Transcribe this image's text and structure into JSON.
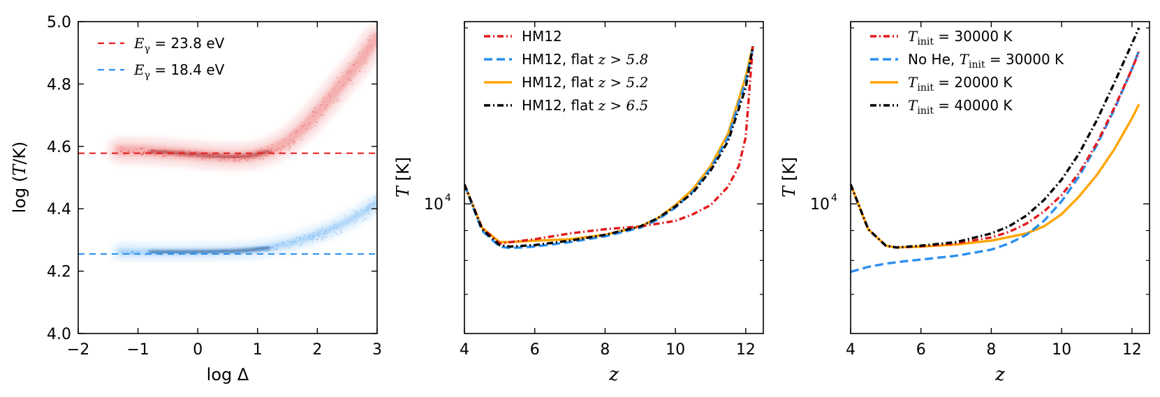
{
  "chart_data": [
    {
      "type": "scatter",
      "panel": "left",
      "xlabel": "log Δ",
      "ylabel_prefix": "log (",
      "ylabel_var": "T",
      "ylabel_suffix": "/K)",
      "xlim": [
        -2,
        3
      ],
      "ylim": [
        4.0,
        5.0
      ],
      "xticks": [
        -2,
        -1,
        0,
        1,
        2,
        3
      ],
      "xtick_labels": [
        "−2",
        "−1",
        "0",
        "1",
        "2",
        "3"
      ],
      "yticks": [
        4.0,
        4.2,
        4.4,
        4.6,
        4.8,
        5.0
      ],
      "ytick_labels": [
        "4.0",
        "4.2",
        "4.4",
        "4.6",
        "4.8",
        "5.0"
      ],
      "legend": [
        {
          "label_var": "E",
          "label_sub": "γ",
          "label_rest": " = 23.8 eV",
          "color": "#e41a1c"
        },
        {
          "label_var": "E",
          "label_sub": "γ",
          "label_rest": " = 18.4 eV",
          "color": "#2b8ff0"
        }
      ],
      "hlines": [
        {
          "y": 4.578,
          "color": "#e41a1c"
        },
        {
          "y": 4.255,
          "color": "#2b8ff0"
        }
      ],
      "series": [
        {
          "name": "E_gamma=23.8 eV",
          "color": "#e41a1c",
          "ridge": [
            [
              -1.3,
              4.588
            ],
            [
              -0.8,
              4.585
            ],
            [
              -0.3,
              4.578
            ],
            [
              0.2,
              4.57
            ],
            [
              0.6,
              4.566
            ],
            [
              0.9,
              4.57
            ],
            [
              1.2,
              4.585
            ],
            [
              1.5,
              4.615
            ],
            [
              1.8,
              4.665
            ],
            [
              2.1,
              4.73
            ],
            [
              2.4,
              4.8
            ],
            [
              2.7,
              4.87
            ],
            [
              3.0,
              4.95
            ]
          ]
        },
        {
          "name": "E_gamma=18.4 eV",
          "color": "#2b8ff0",
          "ridge": [
            [
              -1.3,
              4.262
            ],
            [
              -0.8,
              4.261
            ],
            [
              -0.3,
              4.261
            ],
            [
              0.2,
              4.262
            ],
            [
              0.6,
              4.264
            ],
            [
              0.9,
              4.268
            ],
            [
              1.2,
              4.276
            ],
            [
              1.5,
              4.288
            ],
            [
              1.8,
              4.305
            ],
            [
              2.1,
              4.325
            ],
            [
              2.4,
              4.35
            ],
            [
              2.7,
              4.38
            ],
            [
              3.0,
              4.42
            ]
          ]
        }
      ]
    },
    {
      "type": "line",
      "panel": "middle",
      "xlabel": "z",
      "ylabel_var": "T",
      "ylabel_rest": " [K]",
      "xlim": [
        4,
        12.5
      ],
      "yscale": "log",
      "ylim": [
        6000,
        20500
      ],
      "xticks": [
        4,
        6,
        8,
        10,
        12
      ],
      "xtick_labels": [
        "4",
        "6",
        "8",
        "10",
        "12"
      ],
      "ytick_major": [
        10000
      ],
      "ytick_label_base": "10",
      "ytick_label_exp": "4",
      "ytick_minor": [
        7000,
        8000,
        9000,
        20000
      ],
      "legend": [
        {
          "label": "HM12",
          "label_var": "",
          "color": "#e41a1c",
          "dash": "dashdot"
        },
        {
          "label": "HM12, flat ",
          "label_var": "z > 5.8",
          "color": "#2b8ff0",
          "dash": "dash"
        },
        {
          "label": "HM12, flat ",
          "label_var": "z > 5.2",
          "color": "#ffa500",
          "dash": "solid"
        },
        {
          "label": "HM12, flat ",
          "label_var": "z > 6.5",
          "color": "#000000",
          "dash": "dashdot"
        }
      ],
      "series": [
        {
          "name": "HM12",
          "color": "#e41a1c",
          "dash": "dashdot",
          "x": [
            4.0,
            4.5,
            5.0,
            5.3,
            6.0,
            7.0,
            8.0,
            9.0,
            10.0,
            10.5,
            11.0,
            11.5,
            11.8,
            12.0,
            12.2
          ],
          "y": [
            10800,
            9100,
            8550,
            8600,
            8700,
            8900,
            9050,
            9150,
            9350,
            9600,
            9950,
            10700,
            11600,
            13000,
            18600
          ]
        },
        {
          "name": "HM12, flat z>5.8",
          "color": "#2b8ff0",
          "dash": "dash",
          "x": [
            4.0,
            4.5,
            5.0,
            5.3,
            6.0,
            7.0,
            8.0,
            9.0,
            9.5,
            10.0,
            10.5,
            11.0,
            11.5,
            12.0,
            12.2
          ],
          "y": [
            10800,
            9000,
            8450,
            8400,
            8450,
            8600,
            8800,
            9100,
            9400,
            9850,
            10500,
            11500,
            13000,
            16200,
            18400
          ]
        },
        {
          "name": "HM12, flat z>5.2",
          "color": "#ffa500",
          "dash": "solid",
          "x": [
            4.0,
            4.5,
            5.0,
            5.3,
            6.0,
            7.0,
            8.0,
            9.0,
            9.5,
            10.0,
            10.5,
            11.0,
            11.5,
            12.0,
            12.2
          ],
          "y": [
            10800,
            9100,
            8600,
            8600,
            8650,
            8700,
            8850,
            9150,
            9450,
            9950,
            10600,
            11600,
            13200,
            16500,
            18600
          ]
        },
        {
          "name": "HM12, flat z>6.5",
          "color": "#000000",
          "dash": "dashdot",
          "x": [
            4.0,
            4.5,
            5.0,
            5.3,
            6.0,
            7.0,
            8.0,
            9.0,
            9.5,
            10.0,
            10.5,
            11.0,
            11.5,
            12.0,
            12.2
          ],
          "y": [
            10800,
            9050,
            8500,
            8450,
            8500,
            8650,
            8850,
            9150,
            9450,
            9900,
            10450,
            11400,
            12800,
            15800,
            18600
          ]
        }
      ]
    },
    {
      "type": "line",
      "panel": "right",
      "xlabel": "z",
      "ylabel_var": "T",
      "ylabel_rest": " [K]",
      "xlim": [
        4,
        12.5
      ],
      "yscale": "log",
      "ylim": [
        6000,
        20500
      ],
      "xticks": [
        4,
        6,
        8,
        10,
        12
      ],
      "xtick_labels": [
        "4",
        "6",
        "8",
        "10",
        "12"
      ],
      "ytick_major": [
        10000
      ],
      "ytick_label_base": "10",
      "ytick_label_exp": "4",
      "ytick_minor": [
        7000,
        8000,
        9000,
        20000
      ],
      "legend": [
        {
          "label": "",
          "label_var": "T",
          "label_sub": "init",
          "label_rest": " = 30000 K",
          "color": "#e41a1c",
          "dash": "dashdot"
        },
        {
          "label": "No He, ",
          "label_var": "T",
          "label_sub": "init",
          "label_rest": " = 30000 K",
          "color": "#2b8ff0",
          "dash": "dash"
        },
        {
          "label": "",
          "label_var": "T",
          "label_sub": "init",
          "label_rest": " = 20000 K",
          "color": "#ffa500",
          "dash": "solid"
        },
        {
          "label": "",
          "label_var": "T",
          "label_sub": "init",
          "label_rest": " = 40000 K",
          "color": "#000000",
          "dash": "dashdot"
        }
      ],
      "series": [
        {
          "name": "T_init=30000 K",
          "color": "#e41a1c",
          "dash": "dashdot",
          "x": [
            4.0,
            4.5,
            5.0,
            5.3,
            6.0,
            7.0,
            8.0,
            8.5,
            9.0,
            9.5,
            10.0,
            10.5,
            11.0,
            11.5,
            12.0,
            12.2
          ],
          "y": [
            10800,
            9050,
            8480,
            8420,
            8460,
            8560,
            8760,
            8950,
            9250,
            9700,
            10350,
            11300,
            12700,
            14600,
            17000,
            18200
          ]
        },
        {
          "name": "No He, T_init=30000 K",
          "color": "#2b8ff0",
          "dash": "dash",
          "x": [
            4.0,
            4.5,
            5.0,
            5.5,
            6.0,
            7.0,
            8.0,
            8.5,
            9.0,
            9.5,
            10.0,
            10.5,
            11.0,
            11.5,
            12.0,
            12.2
          ],
          "y": [
            7650,
            7800,
            7900,
            7970,
            8030,
            8150,
            8350,
            8550,
            8850,
            9350,
            10100,
            11150,
            12600,
            14500,
            17000,
            18300
          ]
        },
        {
          "name": "T_init=20000 K",
          "color": "#ffa500",
          "dash": "solid",
          "x": [
            4.0,
            4.5,
            5.0,
            5.3,
            6.0,
            7.0,
            8.0,
            9.0,
            9.5,
            10.0,
            10.5,
            11.0,
            11.5,
            12.0,
            12.2
          ],
          "y": [
            10800,
            9050,
            8480,
            8420,
            8450,
            8520,
            8650,
            8900,
            9150,
            9600,
            10300,
            11200,
            12400,
            14000,
            14800
          ]
        },
        {
          "name": "T_init=40000 K",
          "color": "#000000",
          "dash": "dashdot",
          "x": [
            4.0,
            4.5,
            5.0,
            5.3,
            6.0,
            7.0,
            8.0,
            8.5,
            9.0,
            9.5,
            10.0,
            10.5,
            11.0,
            11.5,
            12.0,
            12.2
          ],
          "y": [
            10800,
            9050,
            8480,
            8420,
            8480,
            8600,
            8900,
            9150,
            9550,
            10150,
            11000,
            12200,
            13900,
            16100,
            18800,
            20000
          ]
        }
      ]
    }
  ]
}
